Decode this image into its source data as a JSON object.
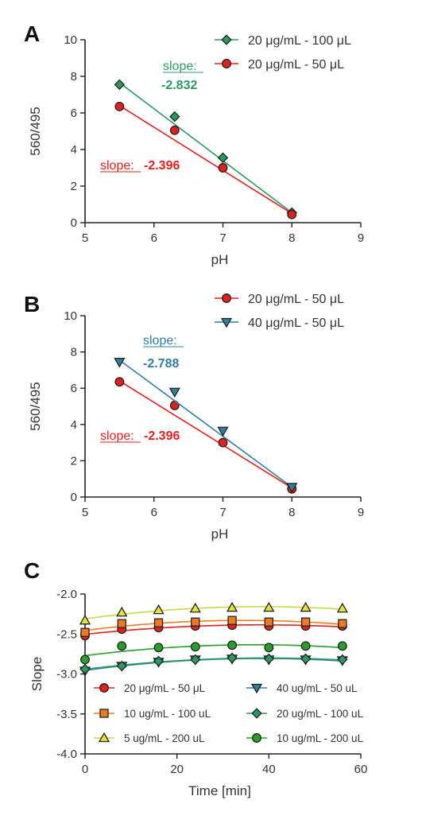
{
  "colors": {
    "red": "#e41f1f",
    "green": "#2a9a62",
    "blue": "#2f7f9f",
    "orange": "#f07a24",
    "yellow": "#e6e43a",
    "yellow_line": "#cdd74a",
    "dark_green": "#2a9e2a",
    "axis": "#222222"
  },
  "chart_data": [
    {
      "panel": "A",
      "type": "scatter",
      "xlabel": "pH",
      "ylabel": "560/495",
      "xlim": [
        5,
        9
      ],
      "ylim": [
        0,
        10
      ],
      "xticks": [
        5,
        6,
        7,
        8,
        9
      ],
      "yticks": [
        0,
        2,
        4,
        6,
        8,
        10
      ],
      "legend_placement": "top-right",
      "series": [
        {
          "name": "20 μg/mL - 100 μL",
          "marker": "diamond",
          "color": "green",
          "x": [
            5.5,
            6.3,
            7,
            8
          ],
          "y": [
            7.55,
            5.8,
            3.55,
            0.55
          ],
          "fit": {
            "slope": -2.832,
            "x_range": [
              5.5,
              8
            ],
            "y_range": [
              7.65,
              0.55
            ]
          }
        },
        {
          "name": "20 μg/mL - 50 μL",
          "marker": "circle",
          "color": "red",
          "x": [
            5.5,
            6.3,
            7,
            8
          ],
          "y": [
            6.35,
            5.05,
            3.0,
            0.45
          ],
          "fit": {
            "slope": -2.396,
            "x_range": [
              5.5,
              8
            ],
            "y_range": [
              6.4,
              0.5
            ]
          }
        }
      ],
      "annotations": [
        {
          "prefix": "slope:",
          "value": "-2.832",
          "color": "green",
          "layout": "stacked"
        },
        {
          "prefix": "slope:",
          "value": "-2.396",
          "color": "red",
          "layout": "inline"
        }
      ]
    },
    {
      "panel": "B",
      "type": "scatter",
      "xlabel": "pH",
      "ylabel": "560/495",
      "xlim": [
        5,
        9
      ],
      "ylim": [
        0,
        10
      ],
      "xticks": [
        5,
        6,
        7,
        8,
        9
      ],
      "yticks": [
        0,
        2,
        4,
        6,
        8,
        10
      ],
      "legend_placement": "top-right",
      "series": [
        {
          "name": "20 μg/mL - 50 μL",
          "marker": "circle",
          "color": "red",
          "x": [
            5.5,
            6.3,
            7,
            8
          ],
          "y": [
            6.35,
            5.05,
            3.0,
            0.45
          ],
          "fit": {
            "slope": -2.396,
            "x_range": [
              5.5,
              8
            ],
            "y_range": [
              6.4,
              0.5
            ]
          }
        },
        {
          "name": "40 μg/mL - 50 μL",
          "marker": "triangle-down",
          "color": "blue",
          "x": [
            5.5,
            6.3,
            7,
            8
          ],
          "y": [
            7.45,
            5.8,
            3.65,
            0.55
          ],
          "fit": {
            "slope": -2.788,
            "x_range": [
              5.5,
              8
            ],
            "y_range": [
              7.55,
              0.55
            ]
          }
        }
      ],
      "annotations": [
        {
          "prefix": "slope:",
          "value": "-2.788",
          "color": "blue",
          "layout": "stacked"
        },
        {
          "prefix": "slope:",
          "value": "-2.396",
          "color": "red",
          "layout": "inline"
        }
      ]
    },
    {
      "panel": "C",
      "type": "scatter",
      "xlabel": "Time [min]",
      "ylabel": "Slope",
      "xlim": [
        0,
        60
      ],
      "ylim": [
        -4.0,
        -2.0
      ],
      "xticks": [
        0,
        20,
        40,
        60
      ],
      "yticks": [
        -2.0,
        -2.5,
        -3.0,
        -3.5,
        -4.0
      ],
      "ytick_labels": [
        "-2.0",
        "-2.5",
        "-3.0",
        "-3.5",
        "-4.0"
      ],
      "legend_placement": "bottom",
      "series": [
        {
          "name": "20 μg/mL - 50 μL",
          "marker": "circle",
          "color": "red",
          "line": "red",
          "x": [
            0,
            8,
            16,
            24,
            32,
            40,
            48,
            56
          ],
          "y": [
            -2.52,
            -2.44,
            -2.42,
            -2.4,
            -2.39,
            -2.4,
            -2.4,
            -2.4
          ]
        },
        {
          "name": "10 ug/mL - 100 uL",
          "marker": "square",
          "color": "orange",
          "line": "orange",
          "x": [
            0,
            8,
            16,
            24,
            32,
            40,
            48,
            56
          ],
          "y": [
            -2.48,
            -2.37,
            -2.36,
            -2.35,
            -2.33,
            -2.35,
            -2.35,
            -2.37
          ]
        },
        {
          "name": "5 ug/mL - 200 uL",
          "marker": "triangle-up",
          "color": "yellow",
          "line": "yellow_line",
          "x": [
            0,
            8,
            16,
            24,
            32,
            40,
            48,
            56
          ],
          "y": [
            -2.33,
            -2.23,
            -2.2,
            -2.18,
            -2.17,
            -2.17,
            -2.17,
            -2.18
          ]
        },
        {
          "name": "40 ug/mL - 50 uL",
          "marker": "triangle-down",
          "color": "blue",
          "line": "blue",
          "x": [
            0,
            8,
            16,
            24,
            32,
            40,
            48,
            56
          ],
          "y": [
            -2.96,
            -2.9,
            -2.85,
            -2.82,
            -2.81,
            -2.82,
            -2.82,
            -2.83
          ]
        },
        {
          "name": "20 ug/mL - 100 uL",
          "marker": "diamond",
          "color": "green",
          "line": "green",
          "x": [
            0,
            8,
            16,
            24,
            32,
            40,
            48,
            56
          ],
          "y": [
            -2.94,
            -2.9,
            -2.84,
            -2.82,
            -2.8,
            -2.81,
            -2.81,
            -2.82
          ]
        },
        {
          "name": "10 ug/mL - 200 uL",
          "marker": "circle",
          "color": "dark_green",
          "line": "dark_green",
          "x": [
            0,
            8,
            16,
            24,
            32,
            40,
            48,
            56
          ],
          "y": [
            -2.82,
            -2.65,
            -2.67,
            -2.66,
            -2.64,
            -2.67,
            -2.65,
            -2.65
          ]
        }
      ]
    }
  ]
}
